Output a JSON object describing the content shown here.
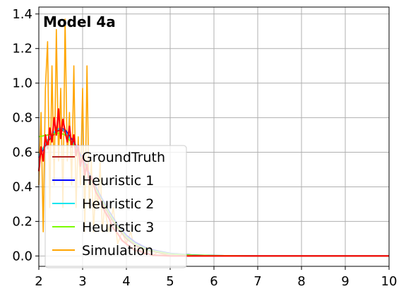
{
  "chart_data": {
    "type": "line",
    "title": "Model 4a",
    "xlabel": "",
    "ylabel": "",
    "xlim": [
      2,
      10
    ],
    "ylim": [
      -0.06,
      1.44
    ],
    "xticks": [
      2,
      3,
      4,
      5,
      6,
      7,
      8,
      9,
      10
    ],
    "yticks": [
      0.0,
      0.2,
      0.4,
      0.6,
      0.8,
      1.0,
      1.2,
      1.4
    ],
    "grid": true,
    "legend_position": "lower-left",
    "series": [
      {
        "name": "GroundTruth",
        "color": "#b22222",
        "x": [
          2.0,
          2.2,
          2.4,
          2.5,
          2.6,
          2.8,
          3.0,
          3.2,
          3.4,
          3.6,
          3.8,
          4.0,
          4.2,
          4.5,
          5.0,
          5.5,
          6.0,
          7.0,
          8.0,
          9.0,
          10.0
        ],
        "values": [
          0.57,
          0.66,
          0.72,
          0.73,
          0.72,
          0.65,
          0.55,
          0.44,
          0.33,
          0.24,
          0.16,
          0.1,
          0.06,
          0.03,
          0.01,
          0.004,
          0.002,
          0.0,
          0.0,
          0.0,
          0.0
        ]
      },
      {
        "name": "Heuristic 1",
        "color": "#0000ff",
        "x": [
          2.0,
          2.2,
          2.4,
          2.5,
          2.6,
          2.8,
          3.0,
          3.2,
          3.4,
          3.6,
          3.8,
          4.0,
          4.2,
          4.5,
          5.0,
          5.5,
          6.0,
          7.0,
          8.0,
          9.0,
          10.0
        ],
        "values": [
          0.57,
          0.67,
          0.73,
          0.74,
          0.73,
          0.66,
          0.56,
          0.45,
          0.35,
          0.26,
          0.18,
          0.12,
          0.08,
          0.04,
          0.015,
          0.006,
          0.002,
          0.0,
          0.0,
          0.0,
          0.0
        ]
      },
      {
        "name": "Heuristic 2",
        "color": "#00e5ee",
        "x": [
          2.0,
          2.2,
          2.4,
          2.5,
          2.6,
          2.8,
          3.0,
          3.2,
          3.4,
          3.6,
          3.8,
          4.0,
          4.2,
          4.5,
          5.0,
          5.5,
          6.0,
          7.0,
          8.0,
          9.0,
          10.0
        ],
        "values": [
          0.58,
          0.67,
          0.73,
          0.74,
          0.72,
          0.65,
          0.55,
          0.44,
          0.34,
          0.25,
          0.17,
          0.11,
          0.07,
          0.035,
          0.012,
          0.005,
          0.002,
          0.0,
          0.0,
          0.0,
          0.0
        ]
      },
      {
        "name": "Heuristic 3",
        "color": "#7cfc00",
        "x": [
          2.0,
          2.2,
          2.4,
          2.5,
          2.6,
          2.8,
          3.0,
          3.2,
          3.4,
          3.6,
          3.8,
          4.0,
          4.2,
          4.5,
          5.0,
          5.5,
          6.0,
          7.0,
          8.0,
          9.0,
          10.0
        ],
        "values": [
          0.69,
          0.7,
          0.71,
          0.71,
          0.7,
          0.64,
          0.55,
          0.44,
          0.34,
          0.25,
          0.17,
          0.11,
          0.07,
          0.035,
          0.012,
          0.005,
          0.002,
          0.0,
          0.0,
          0.0,
          0.0
        ]
      },
      {
        "name": "Simulation",
        "color": "#ffa500",
        "x": [
          2.0,
          2.05,
          2.1,
          2.15,
          2.2,
          2.25,
          2.3,
          2.35,
          2.4,
          2.45,
          2.5,
          2.55,
          2.6,
          2.65,
          2.7,
          2.75,
          2.8,
          2.85,
          2.9,
          2.95,
          3.0,
          3.05,
          3.1,
          3.15,
          3.2,
          3.25,
          3.3,
          3.35,
          3.4,
          3.45,
          3.5,
          3.6,
          3.7,
          3.8,
          3.9,
          4.0,
          4.1,
          4.2,
          4.3,
          4.4,
          4.5,
          4.6,
          4.7,
          5.0,
          5.5,
          6.0,
          7.0,
          8.0,
          9.0,
          10.0
        ],
        "values": [
          0.41,
          0.83,
          0.14,
          0.97,
          1.24,
          0.28,
          1.1,
          0.41,
          1.31,
          0.55,
          0.97,
          0.28,
          1.37,
          0.55,
          0.83,
          0.41,
          1.1,
          0.28,
          0.69,
          0.41,
          0.97,
          0.14,
          1.1,
          0.28,
          0.55,
          0.14,
          0.41,
          0.28,
          0.55,
          0.14,
          0.28,
          0.14,
          0.28,
          0.07,
          0.14,
          0.07,
          0.14,
          0.02,
          0.07,
          0.01,
          0.05,
          0.0,
          0.02,
          0.0,
          0.0,
          0.0,
          0.0,
          0.0,
          0.0,
          0.0
        ]
      },
      {
        "name": "",
        "color": "#ff0000",
        "x": [
          2.0,
          2.05,
          2.1,
          2.15,
          2.2,
          2.25,
          2.3,
          2.35,
          2.4,
          2.45,
          2.5,
          2.55,
          2.6,
          2.65,
          2.7,
          2.75,
          2.8,
          2.85,
          2.9,
          2.95,
          3.0,
          3.05,
          3.1,
          3.15,
          3.2,
          3.3,
          3.4,
          3.5,
          3.6,
          3.7,
          3.8,
          3.9,
          4.0,
          4.1,
          4.2,
          4.3,
          4.4,
          4.5,
          4.6,
          4.8,
          5.0,
          5.5,
          6.0,
          7.0,
          8.0,
          9.0,
          10.0
        ],
        "values": [
          0.49,
          0.63,
          0.55,
          0.7,
          0.62,
          0.74,
          0.66,
          0.8,
          0.7,
          0.85,
          0.68,
          0.79,
          0.72,
          0.66,
          0.75,
          0.63,
          0.7,
          0.58,
          0.64,
          0.52,
          0.58,
          0.47,
          0.53,
          0.42,
          0.46,
          0.37,
          0.33,
          0.26,
          0.22,
          0.16,
          0.13,
          0.09,
          0.07,
          0.05,
          0.03,
          0.03,
          0.015,
          0.012,
          0.005,
          0.003,
          0.0,
          0.0,
          0.0,
          0.0,
          0.0,
          0.0,
          0.0
        ]
      }
    ]
  }
}
